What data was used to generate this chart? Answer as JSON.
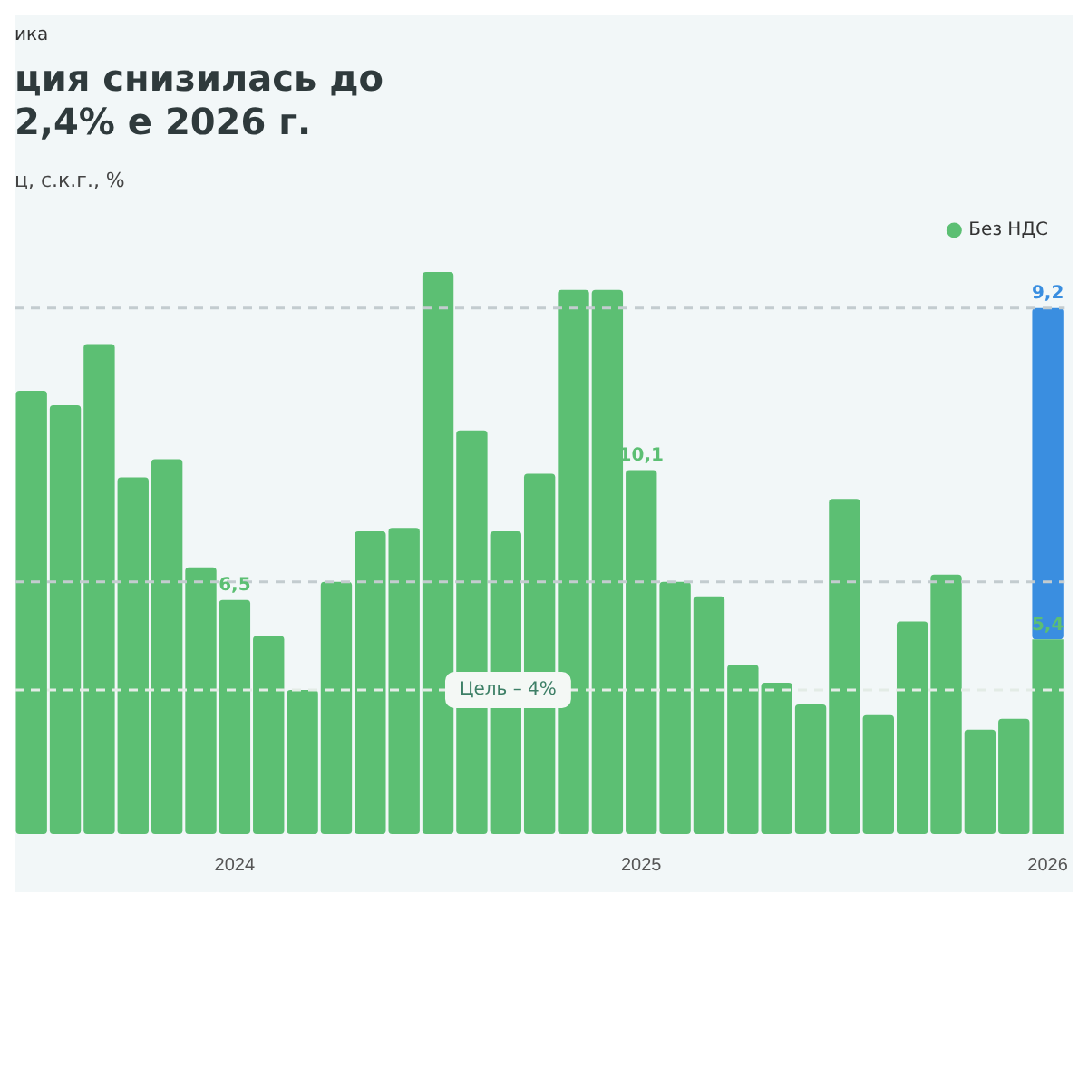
{
  "chart_data": {
    "type": "bar",
    "title": "ция снизилась до 2,4% е 2026 г.",
    "ylabel": "ц, с.к.г., %",
    "annotations": [
      "ика"
    ],
    "categories": [
      null,
      null,
      null,
      null,
      null,
      null,
      "2024",
      null,
      null,
      null,
      null,
      null,
      null,
      null,
      null,
      null,
      null,
      null,
      "2025",
      null,
      null,
      null,
      null,
      null,
      null,
      null,
      null,
      null,
      null,
      null,
      "2026"
    ],
    "stacked": true,
    "series": [
      {
        "name": "Без НДС",
        "color": "#5cbf73",
        "values": [
          12.3,
          11.9,
          13.6,
          9.9,
          10.4,
          7.4,
          6.5,
          5.5,
          4.0,
          7.0,
          8.4,
          8.5,
          15.6,
          11.2,
          8.4,
          10.0,
          15.1,
          15.1,
          10.1,
          7.0,
          6.6,
          4.7,
          4.2,
          3.6,
          9.3,
          3.3,
          5.9,
          7.2,
          2.9,
          3.2,
          5.4
        ],
        "value_labels": [
          null,
          null,
          null,
          null,
          null,
          null,
          "6,5",
          null,
          null,
          null,
          null,
          null,
          null,
          null,
          null,
          null,
          null,
          null,
          "10,1",
          null,
          null,
          null,
          null,
          null,
          null,
          null,
          null,
          null,
          null,
          null,
          "5,4"
        ]
      },
      {
        "color": "#3a8ee0",
        "values": [
          null,
          null,
          null,
          null,
          null,
          null,
          null,
          null,
          null,
          null,
          null,
          null,
          null,
          null,
          null,
          null,
          null,
          null,
          null,
          null,
          null,
          null,
          null,
          null,
          null,
          null,
          null,
          null,
          null,
          null,
          9.2
        ],
        "value_labels": [
          null,
          null,
          null,
          null,
          null,
          null,
          null,
          null,
          null,
          null,
          null,
          null,
          null,
          null,
          null,
          null,
          null,
          null,
          null,
          null,
          null,
          null,
          null,
          null,
          null,
          null,
          null,
          null,
          null,
          null,
          "9,2"
        ]
      }
    ],
    "tick_labels": "x",
    "legend": "top right",
    "ref_lines": [
      {
        "axis": "y",
        "value": 4,
        "label": "Цель – 4%",
        "color": "#e3ece6",
        "line_style": "dashed"
      },
      {
        "axis": "y",
        "value": 7,
        "color": "#c3cccf",
        "line_style": "dashed"
      },
      {
        "axis": "y",
        "value": 14.6,
        "color": "#c3cccf",
        "line_style": "dashed"
      }
    ]
  }
}
